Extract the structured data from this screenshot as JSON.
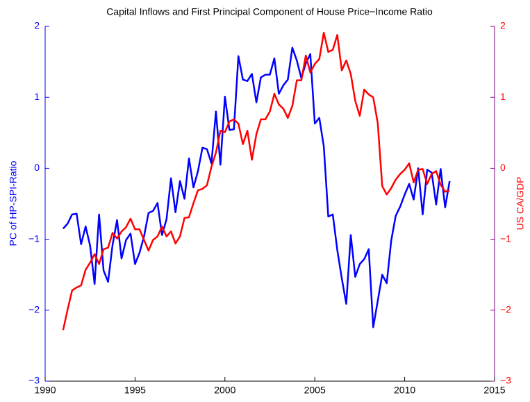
{
  "chart_data": {
    "type": "line",
    "title": "Capital Inflows and First Principal Component of House Price−Income Ratio",
    "ylabel": "PC of HP-SPI-Ratio",
    "y2label": "US CA/GDP",
    "xlim": [
      1990,
      2015
    ],
    "xticks": [
      1990,
      1995,
      2000,
      2005,
      2010,
      2015
    ],
    "ylim": [
      -3,
      2
    ],
    "yticks": [
      {
        "value": -3,
        "label": "−3"
      },
      {
        "value": -2,
        "label": "−2"
      },
      {
        "value": -1,
        "label": "−1"
      },
      0,
      1,
      2
    ],
    "y2lim": [
      -3,
      2
    ],
    "y2ticks": [
      {
        "value": -3,
        "label": "−3"
      },
      {
        "value": -2,
        "label": "−2"
      },
      {
        "value": -1,
        "label": "−1"
      },
      0,
      1,
      2
    ],
    "x": [
      1991,
      1991.25,
      1991.5,
      1991.75,
      1992,
      1992.25,
      1992.5,
      1992.75,
      1993,
      1993.25,
      1993.5,
      1993.75,
      1994,
      1994.25,
      1994.5,
      1994.75,
      1995,
      1995.25,
      1995.5,
      1995.75,
      1996,
      1996.25,
      1996.5,
      1996.75,
      1997,
      1997.25,
      1997.5,
      1997.75,
      1998,
      1998.25,
      1998.5,
      1998.75,
      1999,
      1999.25,
      1999.5,
      1999.75,
      2000,
      2000.25,
      2000.5,
      2000.75,
      2001,
      2001.25,
      2001.5,
      2001.75,
      2002,
      2002.25,
      2002.5,
      2002.75,
      2003,
      2003.25,
      2003.5,
      2003.75,
      2004,
      2004.25,
      2004.5,
      2004.75,
      2005,
      2005.25,
      2005.5,
      2005.75,
      2006,
      2006.25,
      2006.5,
      2006.75,
      2007,
      2007.25,
      2007.5,
      2007.75,
      2008,
      2008.25,
      2008.5,
      2008.75,
      2009,
      2009.25,
      2009.5,
      2009.75,
      2010,
      2010.25,
      2010.5,
      2010.75,
      2011,
      2011.25,
      2011.5,
      2011.75,
      2012,
      2012.25,
      2012.5
    ],
    "series": [
      {
        "color": "#0000ff",
        "axis": "y",
        "values": [
          -0.85,
          -0.78,
          -0.65,
          -0.64,
          -1.07,
          -0.82,
          -1.09,
          -1.63,
          -0.65,
          -1.44,
          -1.6,
          -1.08,
          -0.73,
          -1.27,
          -1.01,
          -0.92,
          -1.35,
          -1.19,
          -0.96,
          -0.63,
          -0.6,
          -0.49,
          -0.94,
          -0.72,
          -0.14,
          -0.62,
          -0.18,
          -0.43,
          0.14,
          -0.27,
          -0.04,
          0.29,
          0.27,
          0.07,
          0.8,
          0.05,
          1.01,
          0.54,
          0.55,
          1.58,
          1.25,
          1.23,
          1.33,
          0.93,
          1.28,
          1.32,
          1.32,
          1.55,
          1.05,
          1.17,
          1.25,
          1.7,
          1.52,
          1.27,
          1.48,
          1.61,
          0.63,
          0.71,
          0.31,
          -0.68,
          -0.65,
          -1.15,
          -1.55,
          -1.91,
          -0.94,
          -1.53,
          -1.35,
          -1.28,
          -1.14,
          -2.24,
          -1.87,
          -1.5,
          -1.62,
          -1.02,
          -0.67,
          -0.54,
          -0.37,
          -0.22,
          -0.44,
          0,
          -0.65,
          -0.02,
          -0.06,
          -0.51,
          -0.01,
          -0.55,
          -0.18
        ]
      },
      {
        "color": "#ff0000",
        "axis": "y2",
        "values": [
          -2.28,
          -1.99,
          -1.72,
          -1.68,
          -1.65,
          -1.43,
          -1.33,
          -1.21,
          -1.35,
          -1.14,
          -1.12,
          -0.91,
          -0.99,
          -0.89,
          -0.83,
          -0.71,
          -0.86,
          -0.86,
          -1.01,
          -1.16,
          -1.01,
          -0.96,
          -0.82,
          -0.96,
          -0.89,
          -1.06,
          -0.96,
          -0.7,
          -0.69,
          -0.49,
          -0.31,
          -0.29,
          -0.24,
          0.02,
          0.22,
          0.53,
          0.51,
          0.66,
          0.69,
          0.63,
          0.34,
          0.53,
          0.12,
          0.48,
          0.69,
          0.69,
          0.8,
          1.05,
          0.9,
          0.84,
          0.71,
          0.88,
          1.24,
          1.24,
          1.59,
          1.35,
          1.47,
          1.54,
          1.91,
          1.64,
          1.67,
          1.88,
          1.38,
          1.52,
          1.33,
          0.95,
          0.74,
          1.11,
          1.04,
          1,
          0.64,
          -0.25,
          -0.37,
          -0.28,
          -0.16,
          -0.08,
          -0.02,
          0.07,
          -0.2,
          -0.02,
          -0.01,
          -0.22,
          -0.08,
          -0.04,
          -0.23,
          -0.33,
          -0.31
        ]
      }
    ]
  }
}
